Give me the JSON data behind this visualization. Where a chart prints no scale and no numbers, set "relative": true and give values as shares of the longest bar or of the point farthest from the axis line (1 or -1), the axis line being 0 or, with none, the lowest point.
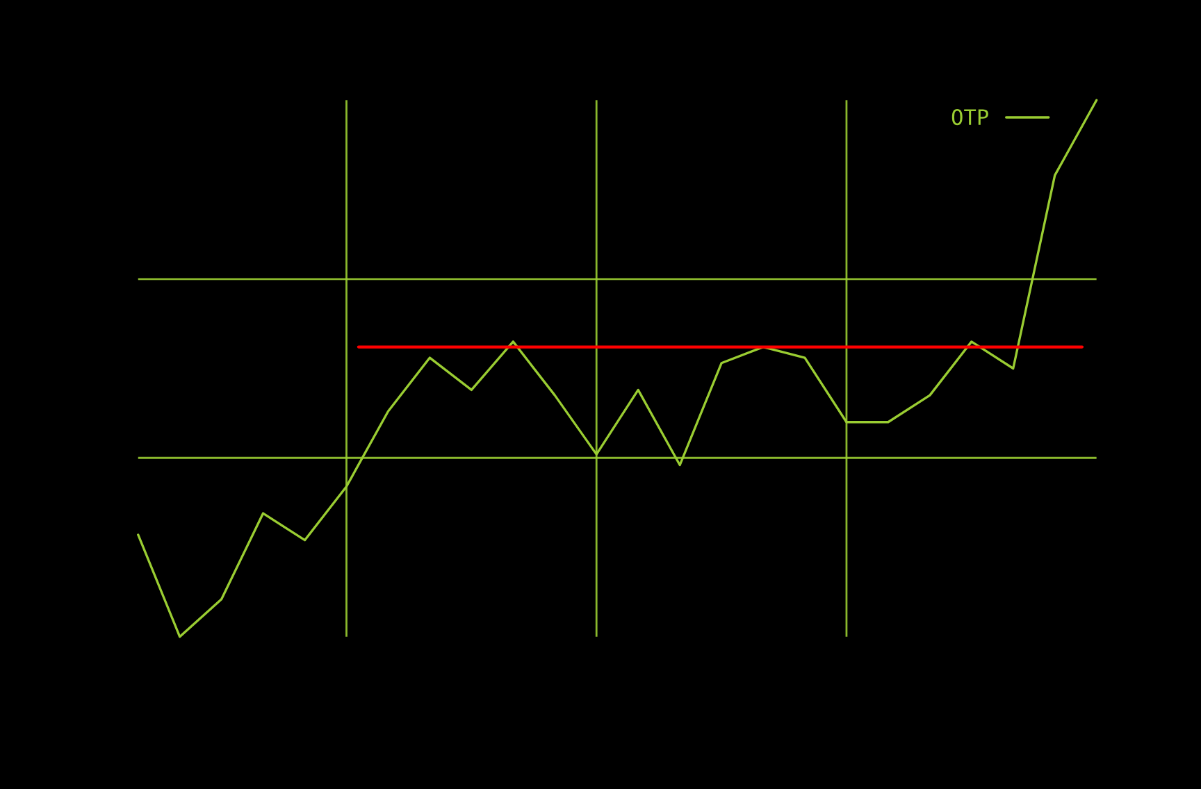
{
  "chart_data": {
    "type": "line",
    "relative": true,
    "grid": true,
    "legend": "top right",
    "categories": [
      null,
      null,
      null,
      null,
      null,
      null,
      null,
      null,
      null,
      null,
      null,
      null,
      null,
      null,
      null,
      null,
      null,
      null,
      null,
      null,
      null,
      null,
      null,
      null
    ],
    "series": [
      {
        "name": "OTP",
        "color": "#9acd32",
        "values": [
          0.19,
          0.0,
          0.07,
          0.23,
          0.18,
          0.28,
          0.42,
          0.52,
          0.46,
          0.55,
          0.45,
          0.34,
          0.46,
          0.32,
          0.51,
          0.54,
          0.52,
          0.4,
          0.4,
          0.45,
          0.55,
          0.5,
          0.86,
          1.0
        ]
      }
    ],
    "ref_lines": [
      {
        "axis": "y",
        "value": 0.54,
        "color": "#ff0000"
      }
    ]
  }
}
